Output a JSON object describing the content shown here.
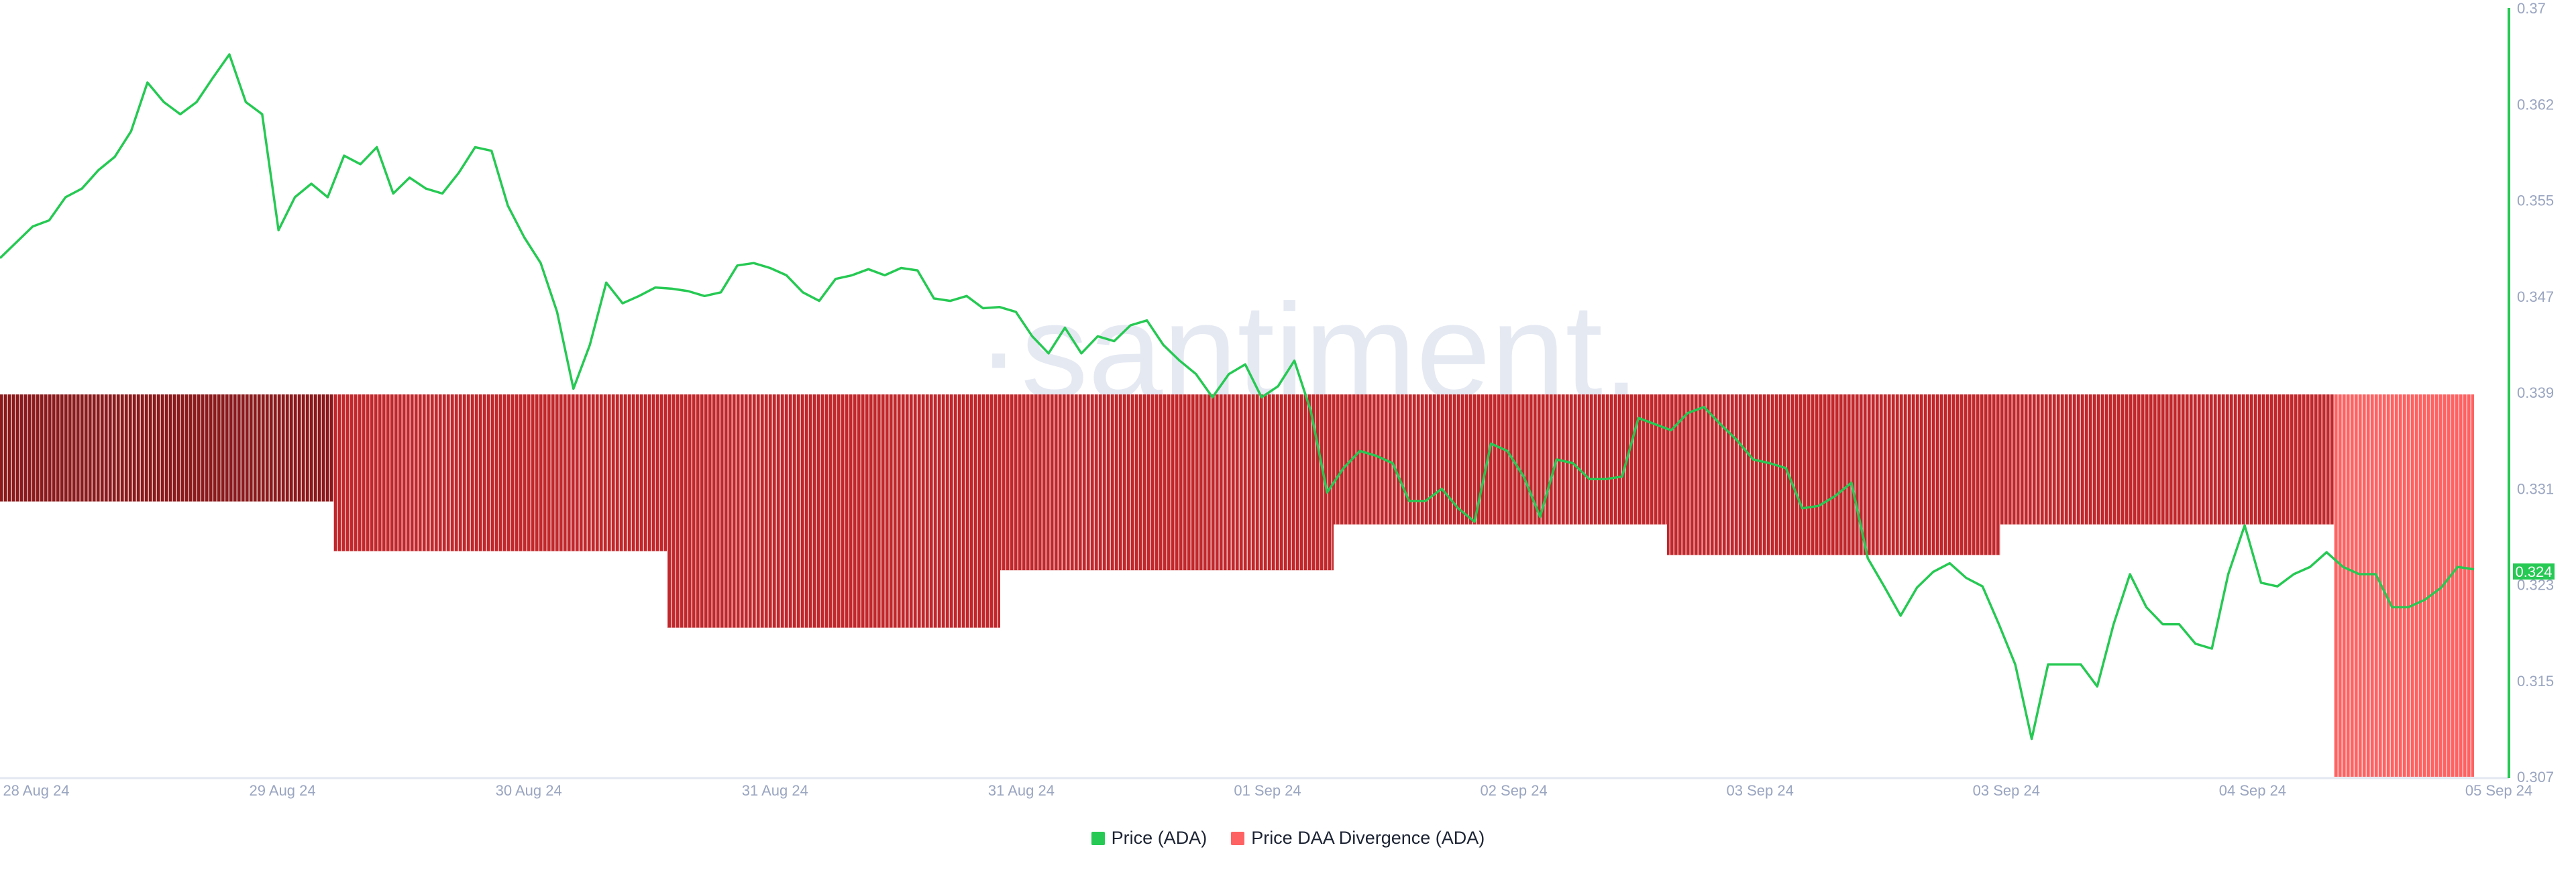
{
  "watermark": "·santiment.",
  "legend": [
    {
      "label": "Price (ADA)",
      "color": "#26c953"
    },
    {
      "label": "Price DAA Divergence (ADA)",
      "color": "#ff6262"
    }
  ],
  "current_price_badge": "0.324",
  "chart_data": {
    "type": "line+bar",
    "x_tick_labels": [
      "28 Aug 24",
      "29 Aug 24",
      "30 Aug 24",
      "31 Aug 24",
      "31 Aug 24",
      "01 Sep 24",
      "02 Sep 24",
      "03 Sep 24",
      "03 Sep 24",
      "04 Sep 24",
      "05 Sep 24"
    ],
    "y_axis": {
      "position": "right",
      "range": [
        0.307,
        0.37
      ],
      "tick_labels": [
        "0.37",
        "0.362",
        "0.355",
        "0.347",
        "0.339",
        "0.331",
        "0.323",
        "0.315",
        "0.307"
      ]
    },
    "grid": false,
    "legend_placement": "bottom",
    "series": [
      {
        "name": "Price (ADA)",
        "type": "line",
        "color": "#26c953",
        "values": [
          0.3495,
          0.3508,
          0.3521,
          0.3526,
          0.3545,
          0.3552,
          0.3567,
          0.3578,
          0.3599,
          0.3639,
          0.3623,
          0.3613,
          0.3623,
          0.3643,
          0.3662,
          0.3623,
          0.3613,
          0.3518,
          0.3545,
          0.3556,
          0.3545,
          0.3579,
          0.3572,
          0.3586,
          0.3548,
          0.3561,
          0.3552,
          0.3548,
          0.3565,
          0.3586,
          0.3583,
          0.3538,
          0.3512,
          0.3491,
          0.3451,
          0.3388,
          0.3424,
          0.3475,
          0.3458,
          0.3464,
          0.3471,
          0.347,
          0.3468,
          0.3464,
          0.3467,
          0.3489,
          0.3491,
          0.3487,
          0.3481,
          0.3467,
          0.346,
          0.3478,
          0.3481,
          0.3486,
          0.3481,
          0.3487,
          0.3485,
          0.3462,
          0.346,
          0.3464,
          0.3454,
          0.3455,
          0.3451,
          0.3431,
          0.3417,
          0.3438,
          0.3417,
          0.3431,
          0.3427,
          0.344,
          0.3444,
          0.3424,
          0.3411,
          0.34,
          0.3381,
          0.34,
          0.3408,
          0.3381,
          0.339,
          0.3411,
          0.337,
          0.3303,
          0.3323,
          0.3337,
          0.3333,
          0.3327,
          0.3296,
          0.3296,
          0.3306,
          0.329,
          0.3279,
          0.3343,
          0.3337,
          0.3316,
          0.3283,
          0.333,
          0.3327,
          0.3314,
          0.3314,
          0.3316,
          0.3364,
          0.3359,
          0.3354,
          0.3368,
          0.3373,
          0.3359,
          0.3346,
          0.333,
          0.3327,
          0.3323,
          0.329,
          0.3292,
          0.33,
          0.3311,
          0.3249,
          0.3226,
          0.3202,
          0.3225,
          0.3238,
          0.3245,
          0.3233,
          0.3226,
          0.3195,
          0.3162,
          0.3101,
          0.3162,
          0.3162,
          0.3162,
          0.3144,
          0.3195,
          0.3236,
          0.3209,
          0.3195,
          0.3195,
          0.3179,
          0.3175,
          0.3236,
          0.3276,
          0.3229,
          0.3226,
          0.3236,
          0.3242,
          0.3254,
          0.3242,
          0.3236,
          0.3236,
          0.3209,
          0.3209,
          0.3215,
          0.3225,
          0.3242,
          0.324
        ]
      },
      {
        "name": "Price DAA Divergence (ADA)",
        "type": "bar",
        "axis": "hidden (relative)",
        "values": [
          -0.28,
          -0.41,
          -0.61,
          -0.46,
          -0.34,
          -0.42,
          -0.34,
          -1.0
        ],
        "colors": [
          "#8b1a1c",
          "#c1272b",
          "#c1272b",
          "#c1272b",
          "#c1272b",
          "#c1272b",
          "#c1272b",
          "#ff6262"
        ]
      }
    ]
  }
}
